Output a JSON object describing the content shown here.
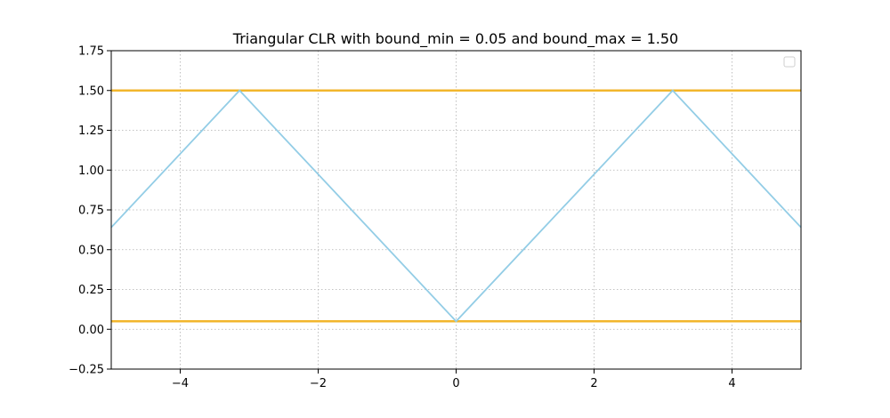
{
  "chart_data": {
    "type": "line",
    "title": "Triangular CLR with bound_min = 0.05 and bound_max = 1.50",
    "xlabel": "",
    "ylabel": "",
    "xlim": [
      -5,
      5
    ],
    "ylim": [
      -0.25,
      1.75
    ],
    "x_ticks": [
      -4,
      -2,
      0,
      2,
      4
    ],
    "x_tick_labels": [
      "−4",
      "−2",
      "0",
      "2",
      "4"
    ],
    "y_ticks": [
      -0.25,
      0,
      0.25,
      0.5,
      0.75,
      1.0,
      1.25,
      1.5,
      1.75
    ],
    "y_tick_labels": [
      "−0.25",
      "0.00",
      "0.25",
      "0.50",
      "0.75",
      "1.00",
      "1.25",
      "1.50",
      "1.75"
    ],
    "grid": true,
    "legend": "top-right (empty)",
    "series": [
      {
        "color": "#93cde6",
        "x": [
          -5,
          -3.14,
          0,
          3.14,
          5
        ],
        "y": [
          0.64,
          1.5,
          0.05,
          1.5,
          0.64
        ]
      }
    ],
    "hlines": [
      {
        "y": 1.5,
        "color": "#f2b62c"
      },
      {
        "y": 0.05,
        "color": "#f2b62c"
      }
    ]
  }
}
